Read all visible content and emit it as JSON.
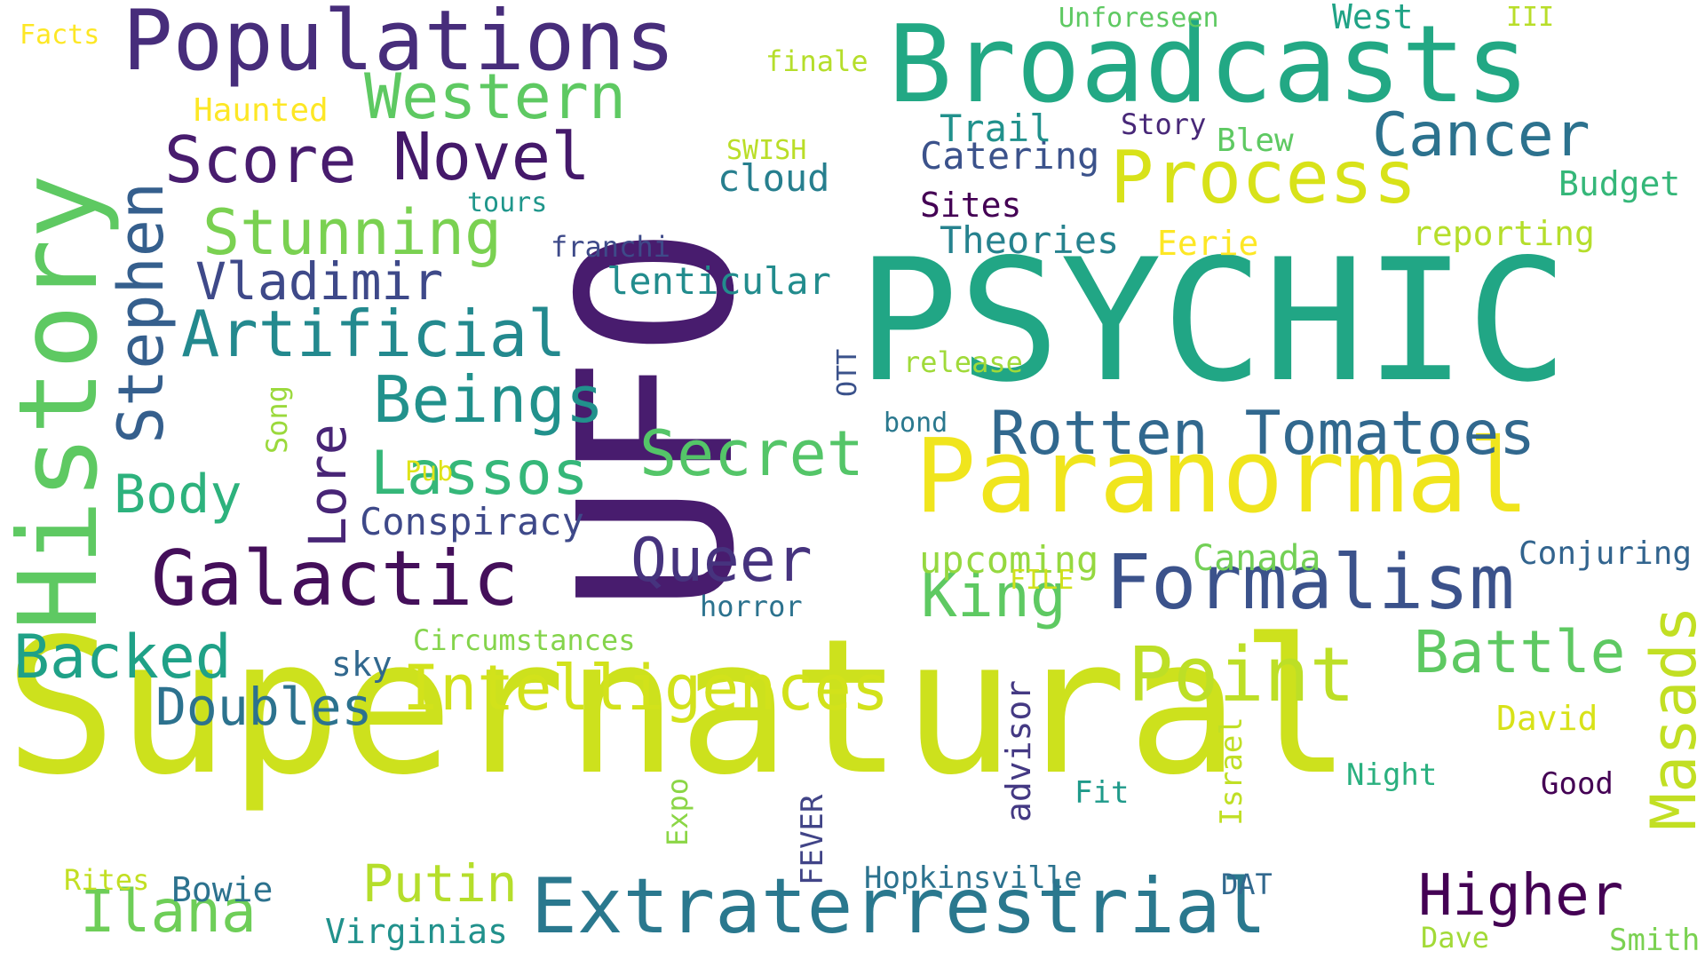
{
  "palette": {
    "dark_purple": "#481c6e",
    "indigo": "#3b528b",
    "teal": "#21918c",
    "green_teal": "#25ab82",
    "green": "#5ec962",
    "lime": "#addc30",
    "yellow": "#f0e51d",
    "chartreuse": "#cde11d"
  },
  "words": [
    {
      "text": "Supernatural",
      "color": "#cde11d"
    },
    {
      "text": "UFO",
      "color": "#481c6e"
    },
    {
      "text": "PSYCHIC",
      "color": "#21a685"
    },
    {
      "text": "Broadcasts",
      "color": "#22a884"
    },
    {
      "text": "History",
      "color": "#5ec962"
    },
    {
      "text": "Paranormal",
      "color": "#f0e51d"
    },
    {
      "text": "Populations",
      "color": "#472d7b"
    },
    {
      "text": "Extraterrestrial",
      "color": "#2a788e"
    },
    {
      "text": "Formalism",
      "color": "#3b528b"
    },
    {
      "text": "Galactic",
      "color": "#440f5a"
    },
    {
      "text": "Process",
      "color": "#d8e219"
    },
    {
      "text": "Point",
      "color": "#bddf26"
    },
    {
      "text": "Rotten Tomatoes",
      "color": "#31688e"
    },
    {
      "text": "Intelligences",
      "color": "#d2e21b"
    },
    {
      "text": "Artificial",
      "color": "#23898e"
    },
    {
      "text": "Stephen",
      "color": "#355f8d"
    },
    {
      "text": "Western",
      "color": "#5ec962"
    },
    {
      "text": "Novel",
      "color": "#44196a"
    },
    {
      "text": "Score",
      "color": "#481c6e"
    },
    {
      "text": "Stunning",
      "color": "#7ad151"
    },
    {
      "text": "Beings",
      "color": "#21918c"
    },
    {
      "text": "Lassos",
      "color": "#35b779"
    },
    {
      "text": "Secret",
      "color": "#54c568"
    },
    {
      "text": "Backed",
      "color": "#1fa187"
    },
    {
      "text": "Masads",
      "color": "#c2df23"
    },
    {
      "text": "Cancer",
      "color": "#2c728e"
    },
    {
      "text": "Battle",
      "color": "#5ec962"
    },
    {
      "text": "Higher",
      "color": "#440154"
    },
    {
      "text": "Ilana",
      "color": "#6ece58"
    },
    {
      "text": "Queer",
      "color": "#46337e"
    },
    {
      "text": "King",
      "color": "#5ec962"
    },
    {
      "text": "Lore",
      "color": "#482576"
    },
    {
      "text": "Body",
      "color": "#2db27d"
    },
    {
      "text": "Doubles",
      "color": "#2c728e"
    },
    {
      "text": "Vladimir",
      "color": "#3e4989"
    },
    {
      "text": "Putin",
      "color": "#b5de2b"
    },
    {
      "text": "Conspiracy",
      "color": "#3e4989"
    },
    {
      "text": "lenticular",
      "color": "#228c8d"
    },
    {
      "text": "cloud",
      "color": "#277f8e"
    },
    {
      "text": "Theories",
      "color": "#26828e"
    },
    {
      "text": "Catering",
      "color": "#3b528b"
    },
    {
      "text": "Trail",
      "color": "#21918c"
    },
    {
      "text": "Sites",
      "color": "#440154"
    },
    {
      "text": "Eerie",
      "color": "#fde725"
    },
    {
      "text": "reporting",
      "color": "#b5de2b"
    },
    {
      "text": "Budget",
      "color": "#35b779"
    },
    {
      "text": "Blew",
      "color": "#5ec962"
    },
    {
      "text": "Story",
      "color": "#482878"
    },
    {
      "text": "West",
      "color": "#20a386"
    },
    {
      "text": "III",
      "color": "#b8de29"
    },
    {
      "text": "Unforeseen",
      "color": "#5ec962"
    },
    {
      "text": "finale",
      "color": "#b5de2b"
    },
    {
      "text": "Haunted",
      "color": "#fde725"
    },
    {
      "text": "Facts",
      "color": "#fde725"
    },
    {
      "text": "tours",
      "color": "#1f968b"
    },
    {
      "text": "franchi",
      "color": "#3e4a89"
    },
    {
      "text": "SWISH",
      "color": "#bade28"
    },
    {
      "text": "upcoming",
      "color": "#95d840"
    },
    {
      "text": "Canada",
      "color": "#73d056"
    },
    {
      "text": "FILE",
      "color": "#d0e11c"
    },
    {
      "text": "horror",
      "color": "#2c728e"
    },
    {
      "text": "Conjuring",
      "color": "#32648e"
    },
    {
      "text": "bond",
      "color": "#2a788e"
    },
    {
      "text": "release",
      "color": "#a0da39"
    },
    {
      "text": "OTT",
      "color": "#3b528b"
    },
    {
      "text": "Song",
      "color": "#9bd93c"
    },
    {
      "text": "Pub",
      "color": "#dfe318"
    },
    {
      "text": "Circumstances",
      "color": "#84d44b"
    },
    {
      "text": "sky",
      "color": "#31688e"
    },
    {
      "text": "advisor",
      "color": "#443983"
    },
    {
      "text": "Israel",
      "color": "#c0df25"
    },
    {
      "text": "Expo",
      "color": "#8bd646"
    },
    {
      "text": "FEVER",
      "color": "#414487"
    },
    {
      "text": "Fit",
      "color": "#1f9a8a"
    },
    {
      "text": "Night",
      "color": "#2ab07f"
    },
    {
      "text": "Good",
      "color": "#440154"
    },
    {
      "text": "David",
      "color": "#d8e219"
    },
    {
      "text": "Hopkinsville",
      "color": "#2c728e"
    },
    {
      "text": "DAT",
      "color": "#31688e"
    },
    {
      "text": "Bowie",
      "color": "#2c728e"
    },
    {
      "text": "Rites",
      "color": "#c2df23"
    },
    {
      "text": "Virginias",
      "color": "#21918c"
    },
    {
      "text": "Dave",
      "color": "#a2da37"
    },
    {
      "text": "Smith",
      "color": "#7ad151"
    }
  ]
}
